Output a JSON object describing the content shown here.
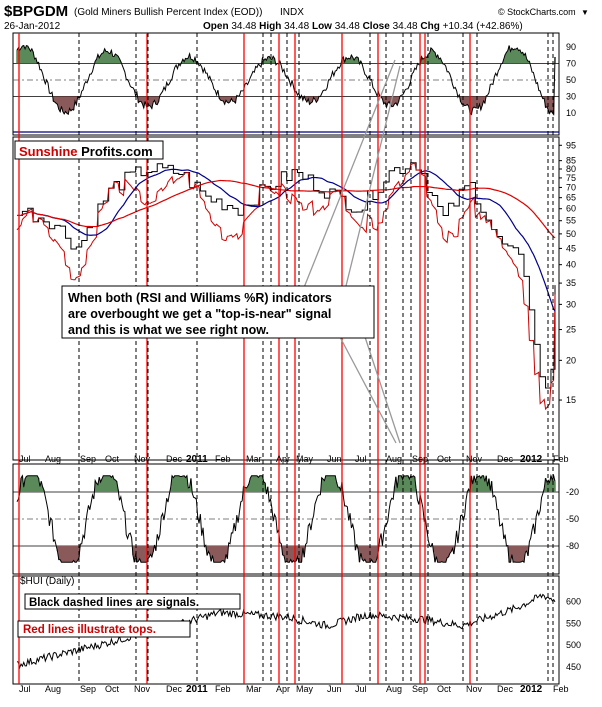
{
  "header": {
    "symbol": "$BPGDM",
    "name": "(Gold Miners Bullish Percent Index (EOD))",
    "exchange": "INDX",
    "date": "26-Jan-2012",
    "open_label": "Open",
    "open": "34.48",
    "high_label": "High",
    "high": "34.48",
    "low_label": "Low",
    "low": "34.48",
    "close_label": "Close",
    "close": "34.48",
    "chg_label": "Chg",
    "chg": "+10.34 (+42.86%)",
    "credit": "© StockCharts.com",
    "credit_arrow": "▼"
  },
  "brand": {
    "part1": "Sunshine",
    "part2": " Profits.com"
  },
  "annotations": {
    "callout": [
      "When both (RSI and Williams %R) indicators",
      "are overbought we get a \"top-is-near\" signal",
      "and this is what we see right now."
    ],
    "black_lines": "Black dashed lines are signals.",
    "red_lines": "Red lines illustrate tops.",
    "hui_label": "$HUI (Daily)"
  },
  "x_axis_labels": [
    "Jul",
    "Aug",
    "Sep",
    "Oct",
    "Nov",
    "Dec",
    "2011",
    "Feb",
    "Mar",
    "Apr",
    "May",
    "Jun",
    "Jul",
    "Aug",
    "Sep",
    "Oct",
    "Nov",
    "Dec",
    "2012",
    "Feb"
  ],
  "chart_data": [
    {
      "type": "line",
      "panel": "RSI",
      "y_ticks": [
        90,
        70,
        50,
        30,
        10
      ],
      "ylim": [
        0,
        100
      ],
      "overbought": 70,
      "oversold": 30,
      "colors": {
        "line": "#000000",
        "overbought_fill": "#5a8a5a",
        "oversold_fill": "#8a5a5a",
        "baseline": "#000080"
      }
    },
    {
      "type": "line",
      "panel": "Price",
      "y_scale": "log",
      "y_ticks": [
        95,
        85,
        80,
        75,
        70,
        65,
        60,
        55,
        50,
        45,
        40,
        35,
        30,
        25,
        20,
        15
      ],
      "ylim": [
        10,
        98
      ],
      "last_value": 34.48,
      "series": [
        {
          "color": "#000000",
          "style": "step"
        },
        {
          "color": "#cc0000"
        },
        {
          "color": "#00008b"
        },
        {
          "color": "#dd0000"
        }
      ]
    },
    {
      "type": "line",
      "panel": "Williams %R",
      "y_ticks": [
        -20,
        -50,
        -80
      ],
      "ylim": [
        -100,
        0
      ],
      "colors": {
        "line": "#000000",
        "overbought_fill": "#5a8a5a",
        "oversold_fill": "#8a5a5a"
      }
    },
    {
      "type": "line",
      "panel": "$HUI",
      "y_ticks": [
        600,
        550,
        500,
        450
      ],
      "ylim": [
        420,
        650
      ],
      "colors": {
        "line": "#000000"
      }
    }
  ],
  "colors": {
    "red_line": "#ff0000",
    "signal_line": "#000000",
    "frame": "#000000"
  }
}
